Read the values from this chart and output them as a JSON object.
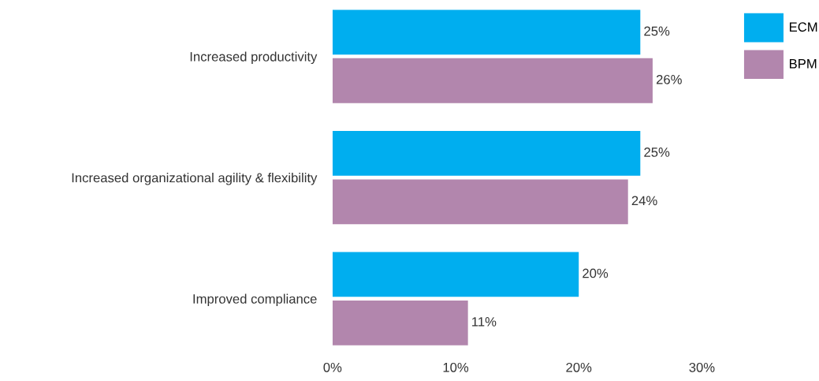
{
  "chart_data": {
    "type": "bar",
    "orientation": "horizontal",
    "categories": [
      "Increased productivity",
      "Increased organizational agility & flexibility",
      "Improved compliance"
    ],
    "series": [
      {
        "name": "ECM",
        "color": "#00aeef",
        "values": [
          25,
          25,
          20
        ],
        "value_labels": [
          "25%",
          "25%",
          "20%"
        ]
      },
      {
        "name": "BPM",
        "color": "#b286ad",
        "values": [
          26,
          24,
          11
        ],
        "value_labels": [
          "26%",
          "24%",
          "11%"
        ]
      }
    ],
    "xlim": [
      0,
      30
    ],
    "xticks": [
      {
        "value": 0,
        "label": "0%"
      },
      {
        "value": 10,
        "label": "10%"
      },
      {
        "value": 20,
        "label": "20%"
      },
      {
        "value": 30,
        "label": "30%"
      }
    ],
    "grid": false,
    "legend": "top right"
  }
}
